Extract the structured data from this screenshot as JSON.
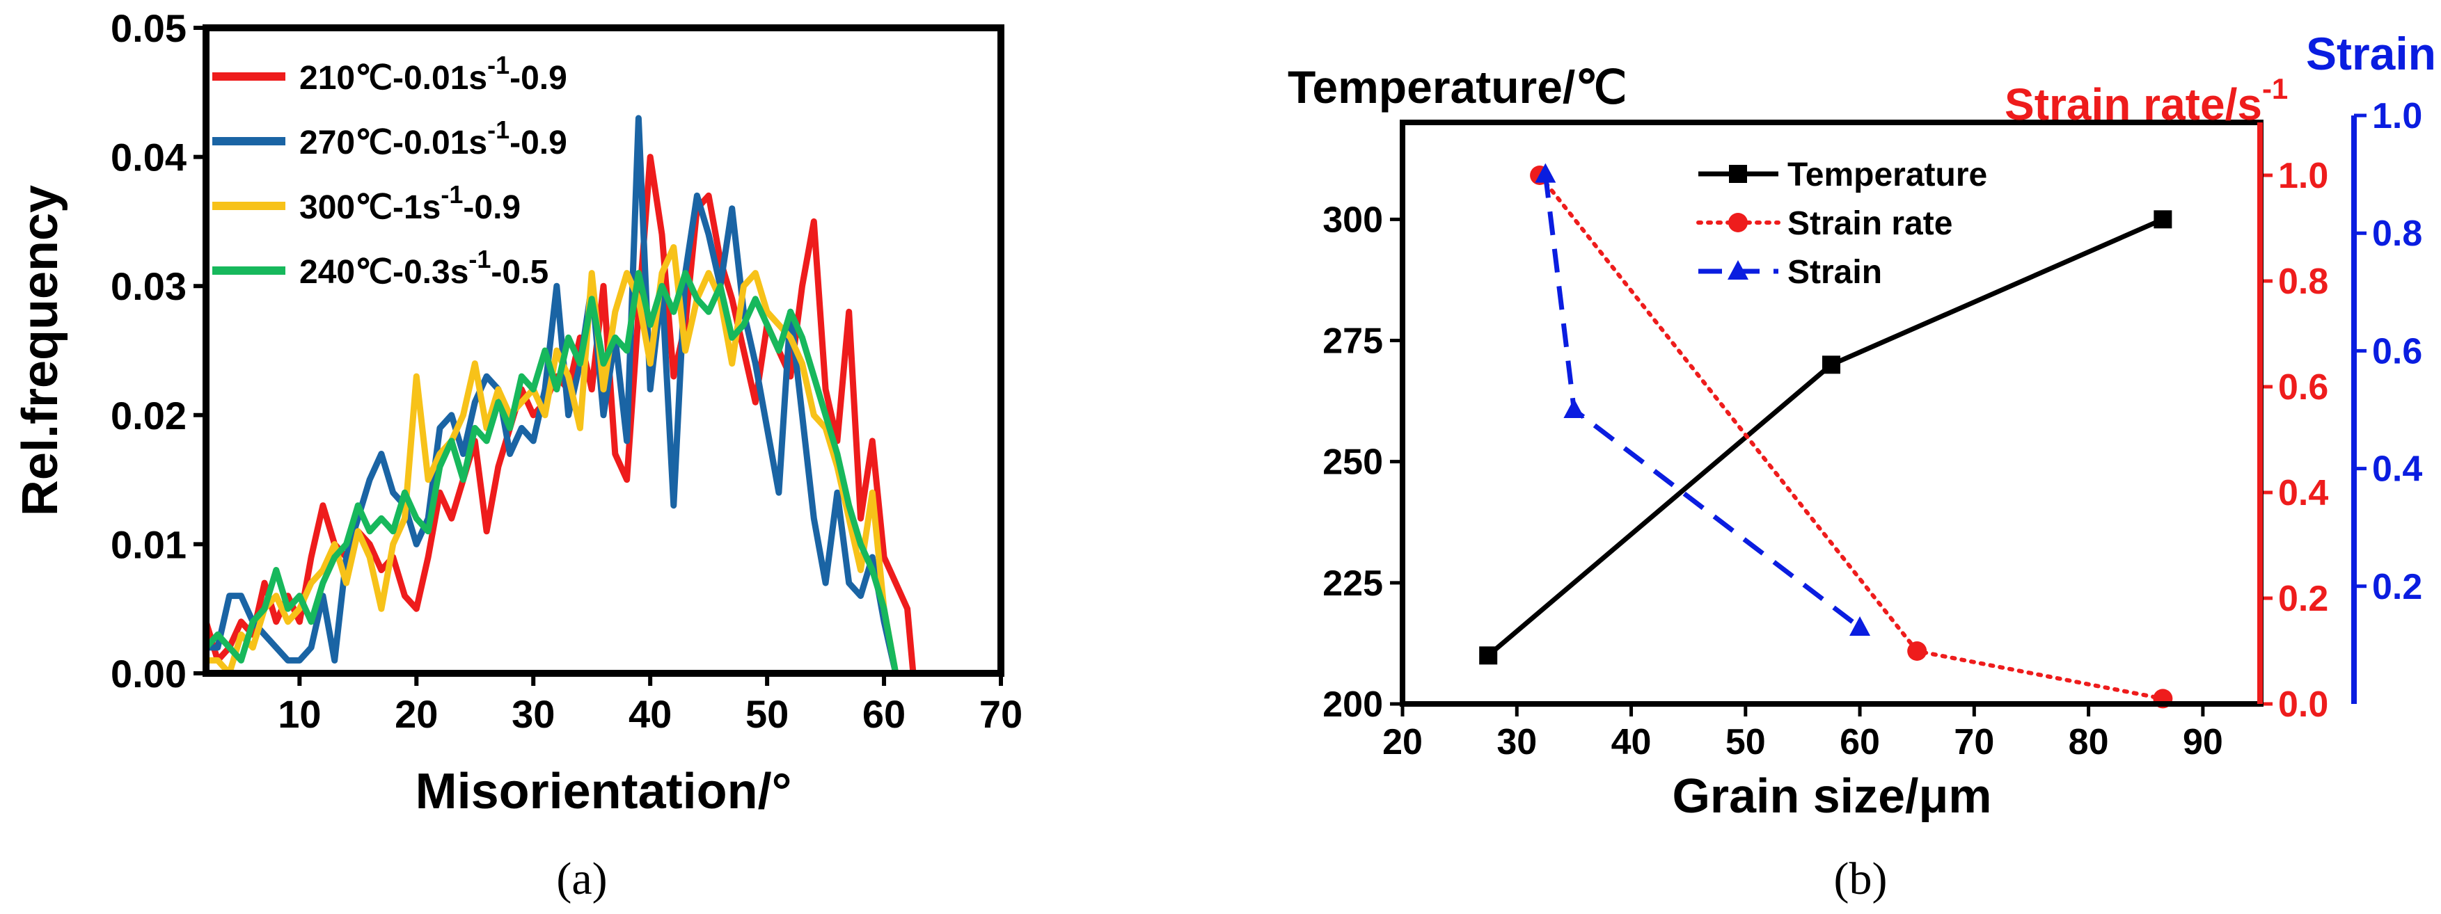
{
  "chart_data": [
    {
      "type": "line",
      "panel_label": "(a)",
      "xlabel": "Misorientation/°",
      "ylabel": "Rel.frequency",
      "xlim": [
        2,
        70
      ],
      "ylim": [
        0,
        0.05
      ],
      "xticks": [
        "10",
        "20",
        "30",
        "40",
        "50",
        "60",
        "70"
      ],
      "yticks": [
        "0.00",
        "0.01",
        "0.02",
        "0.03",
        "0.04",
        "0.05"
      ],
      "legend_position": "top-left",
      "series": [
        {
          "name": "210℃-0.01s-1-0.9",
          "legend_parts": {
            "main": "210℃-0.01s",
            "sup": "-1",
            "tail": "-0.9"
          },
          "color": "#ee1c1c",
          "x": [
            2,
            3,
            4,
            5,
            6,
            7,
            8,
            9,
            10,
            11,
            12,
            13,
            14,
            15,
            16,
            17,
            18,
            19,
            20,
            21,
            22,
            23,
            24,
            25,
            26,
            27,
            28,
            29,
            30,
            31,
            32,
            33,
            34,
            35,
            36,
            37,
            38,
            39,
            40,
            41,
            42,
            43,
            44,
            45,
            46,
            47,
            48,
            49,
            50,
            51,
            52,
            53,
            54,
            55,
            56,
            57,
            58,
            59,
            60,
            61,
            62,
            62.5
          ],
          "y": [
            0.004,
            0.001,
            0.002,
            0.004,
            0.003,
            0.007,
            0.004,
            0.006,
            0.004,
            0.009,
            0.013,
            0.01,
            0.009,
            0.011,
            0.01,
            0.008,
            0.009,
            0.006,
            0.005,
            0.009,
            0.014,
            0.012,
            0.015,
            0.018,
            0.011,
            0.016,
            0.019,
            0.022,
            0.02,
            0.021,
            0.023,
            0.022,
            0.026,
            0.022,
            0.03,
            0.017,
            0.015,
            0.028,
            0.04,
            0.034,
            0.023,
            0.027,
            0.036,
            0.037,
            0.032,
            0.029,
            0.025,
            0.021,
            0.027,
            0.025,
            0.023,
            0.03,
            0.035,
            0.022,
            0.018,
            0.028,
            0.012,
            0.018,
            0.009,
            0.007,
            0.005,
            0.0
          ]
        },
        {
          "name": "270℃-0.01s-1-0.9",
          "legend_parts": {
            "main": "270℃-0.01s",
            "sup": "-1",
            "tail": "-0.9"
          },
          "color": "#1a64a4",
          "x": [
            2,
            3,
            4,
            5,
            6,
            7,
            8,
            9,
            10,
            11,
            12,
            13,
            14,
            15,
            16,
            17,
            18,
            19,
            20,
            21,
            22,
            23,
            24,
            25,
            26,
            27,
            28,
            29,
            30,
            31,
            32,
            33,
            34,
            35,
            36,
            37,
            38,
            39,
            40,
            41,
            42,
            43,
            44,
            45,
            46,
            47,
            48,
            49,
            50,
            51,
            52,
            53,
            54,
            55,
            56,
            57,
            58,
            59,
            60,
            61
          ],
          "y": [
            0.002,
            0.002,
            0.006,
            0.006,
            0.004,
            0.003,
            0.002,
            0.001,
            0.001,
            0.002,
            0.006,
            0.001,
            0.009,
            0.012,
            0.015,
            0.017,
            0.014,
            0.013,
            0.01,
            0.012,
            0.019,
            0.02,
            0.017,
            0.021,
            0.023,
            0.022,
            0.017,
            0.019,
            0.018,
            0.022,
            0.03,
            0.02,
            0.024,
            0.03,
            0.02,
            0.026,
            0.018,
            0.043,
            0.022,
            0.03,
            0.013,
            0.031,
            0.037,
            0.034,
            0.03,
            0.036,
            0.028,
            0.024,
            0.019,
            0.014,
            0.028,
            0.02,
            0.012,
            0.007,
            0.014,
            0.007,
            0.006,
            0.009,
            0.004,
            0.0
          ]
        },
        {
          "name": "300℃-1s-1-0.9",
          "legend_parts": {
            "main": "300℃-1s",
            "sup": "-1",
            "tail": "-0.9"
          },
          "color": "#f7c219",
          "x": [
            2,
            3,
            4,
            5,
            6,
            7,
            8,
            9,
            10,
            11,
            12,
            13,
            14,
            15,
            16,
            17,
            18,
            19,
            20,
            21,
            22,
            23,
            24,
            25,
            26,
            27,
            28,
            29,
            30,
            31,
            32,
            33,
            34,
            35,
            36,
            37,
            38,
            39,
            40,
            41,
            42,
            43,
            44,
            45,
            46,
            47,
            48,
            49,
            50,
            51,
            52,
            53,
            54,
            55,
            56,
            57,
            58,
            59,
            60,
            61
          ],
          "y": [
            0.001,
            0.001,
            0.0,
            0.003,
            0.002,
            0.005,
            0.006,
            0.004,
            0.005,
            0.007,
            0.008,
            0.01,
            0.007,
            0.011,
            0.009,
            0.005,
            0.01,
            0.012,
            0.023,
            0.015,
            0.017,
            0.018,
            0.02,
            0.024,
            0.019,
            0.022,
            0.02,
            0.021,
            0.022,
            0.02,
            0.025,
            0.023,
            0.019,
            0.031,
            0.022,
            0.028,
            0.031,
            0.029,
            0.024,
            0.031,
            0.033,
            0.025,
            0.029,
            0.031,
            0.029,
            0.024,
            0.03,
            0.031,
            0.028,
            0.027,
            0.026,
            0.024,
            0.02,
            0.019,
            0.016,
            0.012,
            0.008,
            0.014,
            0.005,
            0.0
          ]
        },
        {
          "name": "240℃-0.3s-1-0.5",
          "legend_parts": {
            "main": "240℃-0.3s",
            "sup": "-1",
            "tail": "-0.5"
          },
          "color": "#17b85c",
          "x": [
            2,
            3,
            4,
            5,
            6,
            7,
            8,
            9,
            10,
            11,
            12,
            13,
            14,
            15,
            16,
            17,
            18,
            19,
            20,
            21,
            22,
            23,
            24,
            25,
            26,
            27,
            28,
            29,
            30,
            31,
            32,
            33,
            34,
            35,
            36,
            37,
            38,
            39,
            40,
            41,
            42,
            43,
            44,
            45,
            46,
            47,
            48,
            49,
            50,
            51,
            52,
            53,
            54,
            55,
            56,
            57,
            58,
            59,
            60,
            61
          ],
          "y": [
            0.002,
            0.003,
            0.002,
            0.001,
            0.004,
            0.005,
            0.008,
            0.005,
            0.006,
            0.004,
            0.007,
            0.009,
            0.01,
            0.013,
            0.011,
            0.012,
            0.011,
            0.014,
            0.012,
            0.011,
            0.016,
            0.018,
            0.015,
            0.019,
            0.018,
            0.021,
            0.019,
            0.023,
            0.022,
            0.025,
            0.022,
            0.026,
            0.024,
            0.029,
            0.024,
            0.026,
            0.025,
            0.031,
            0.027,
            0.03,
            0.028,
            0.031,
            0.029,
            0.028,
            0.03,
            0.026,
            0.027,
            0.029,
            0.027,
            0.025,
            0.028,
            0.026,
            0.023,
            0.02,
            0.017,
            0.013,
            0.01,
            0.008,
            0.005,
            0.0
          ]
        }
      ]
    },
    {
      "type": "line",
      "panel_label": "(b)",
      "xlabel": "Grain size/μm",
      "xlim": [
        20,
        95
      ],
      "xticks": [
        "20",
        "30",
        "40",
        "50",
        "60",
        "70",
        "80",
        "90"
      ],
      "axes": {
        "left": {
          "label": "Temperature/℃",
          "ylim": [
            200,
            320
          ],
          "ticks": [
            "200",
            "225",
            "250",
            "275",
            "300"
          ],
          "tick_values": [
            200,
            225,
            250,
            275,
            300
          ],
          "color": "#000000"
        },
        "right1": {
          "label_main": "Strain rate/s",
          "label_sup": "-1",
          "ylim": [
            0,
            1.1
          ],
          "ticks": [
            "0.0",
            "0.2",
            "0.4",
            "0.6",
            "0.8",
            "1.0"
          ],
          "tick_values": [
            0,
            0.2,
            0.4,
            0.6,
            0.8,
            1.0
          ],
          "color": "#ee1c1c"
        },
        "right2": {
          "label": "Strain",
          "ylim": [
            0,
            1.0
          ],
          "ticks": [
            "0.2",
            "0.4",
            "0.6",
            "0.8",
            "1.0"
          ],
          "tick_values": [
            0.2,
            0.4,
            0.6,
            0.8,
            1.0
          ],
          "color": "#0a1de0"
        }
      },
      "legend_position": "top-center",
      "series": [
        {
          "name": "Temperature",
          "axis": "left",
          "marker": "square",
          "dash": "solid",
          "color": "#000000",
          "x": [
            27.5,
            57.5,
            86.5
          ],
          "y": [
            210,
            270,
            300
          ]
        },
        {
          "name": "Strain rate",
          "axis": "right1",
          "marker": "circle",
          "dash": "dotted",
          "color": "#ee1c1c",
          "x": [
            32,
            65,
            86.5
          ],
          "y": [
            1.0,
            0.1,
            0.01
          ]
        },
        {
          "name": "Strain",
          "axis": "right2",
          "marker": "triangle",
          "dash": "dashed",
          "color": "#0a1de0",
          "x": [
            32.5,
            35,
            60
          ],
          "y": [
            0.9,
            0.5,
            0.13
          ]
        }
      ]
    }
  ]
}
